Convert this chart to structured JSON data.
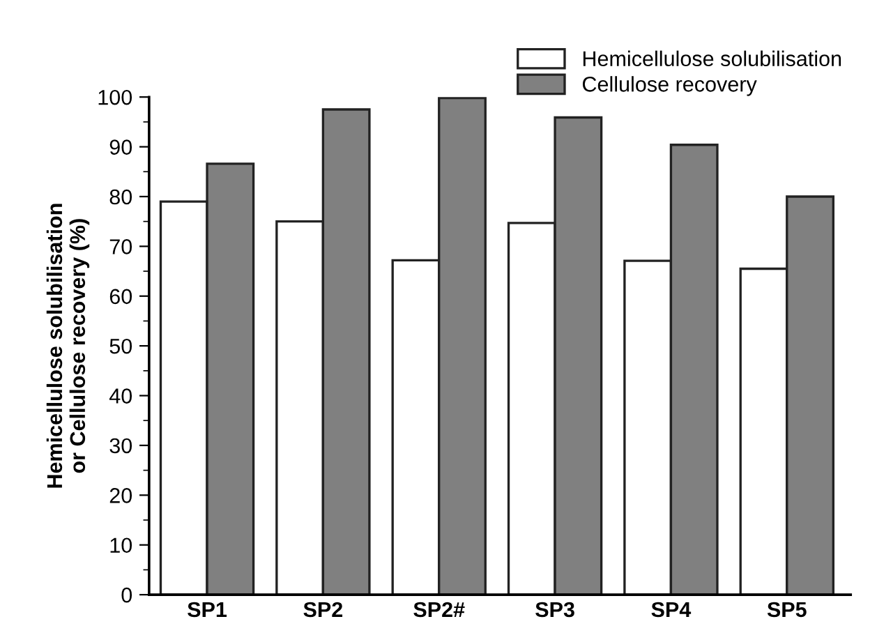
{
  "chart_data": {
    "type": "bar",
    "ylabel": "Hemicellulose solubilisation\nor Cellulose recovery (%)",
    "categories": [
      "SP1",
      "SP2",
      "SP2#",
      "SP3",
      "SP4",
      "SP5"
    ],
    "series": [
      {
        "name": "Hemicellulose solubilisation",
        "color": "#ffffff",
        "values": [
          79.0,
          75.0,
          67.2,
          74.7,
          67.1,
          65.5
        ]
      },
      {
        "name": "Cellulose recovery",
        "color": "#808080",
        "values": [
          86.6,
          97.5,
          99.8,
          95.9,
          90.4,
          80.0
        ]
      }
    ],
    "ylim": [
      0,
      100
    ],
    "yticks": [
      0,
      10,
      20,
      30,
      40,
      50,
      60,
      70,
      80,
      90,
      100
    ],
    "grid": false,
    "legend": "top right"
  }
}
